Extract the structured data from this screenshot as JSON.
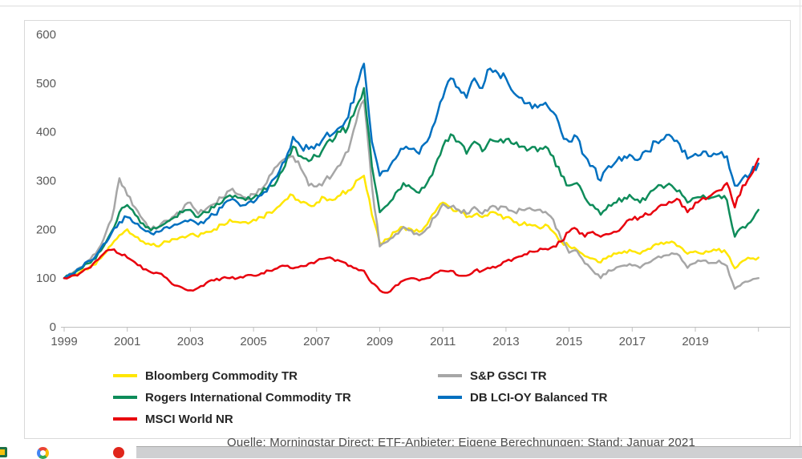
{
  "colors": {
    "axis_text": "#595959",
    "axis_line": "#bfbfbf",
    "border": "#d9d9d9",
    "yellow": "#FFE600",
    "gray": "#A6A6A6",
    "green": "#0E8C5A",
    "blue": "#0070C0",
    "red": "#E8000D"
  },
  "chart_data": {
    "type": "line",
    "title": "",
    "xlabel": "",
    "ylabel": "",
    "x_start": 1999,
    "x_step": 0.25,
    "x_axis": {
      "min": 1999,
      "max": 2022,
      "ticks": [
        1999,
        2001,
        2003,
        2005,
        2007,
        2009,
        2011,
        2013,
        2015,
        2017,
        2019,
        2021
      ],
      "labeled_ticks": [
        1999,
        2001,
        2003,
        2005,
        2007,
        2009,
        2011,
        2013,
        2015,
        2017,
        2019
      ]
    },
    "y_axis": {
      "min": 0,
      "max": 600,
      "ticks": [
        0,
        100,
        200,
        300,
        400,
        500,
        600
      ]
    },
    "grid": false,
    "legend_position": "bottom",
    "series": [
      {
        "name": "Bloomberg Commodity TR",
        "color": "#FFE600",
        "values": [
          100,
          105,
          112,
          118,
          128,
          148,
          168,
          188,
          200,
          185,
          175,
          168,
          165,
          175,
          180,
          185,
          190,
          185,
          195,
          200,
          210,
          220,
          215,
          215,
          220,
          225,
          235,
          245,
          260,
          270,
          255,
          250,
          255,
          265,
          260,
          270,
          280,
          300,
          310,
          230,
          172,
          180,
          195,
          205,
          200,
          195,
          210,
          235,
          255,
          245,
          240,
          225,
          230,
          225,
          235,
          230,
          225,
          215,
          210,
          210,
          205,
          210,
          195,
          175,
          165,
          158,
          145,
          140,
          132,
          145,
          150,
          155,
          155,
          150,
          160,
          170,
          170,
          175,
          165,
          150,
          155,
          150,
          155,
          160,
          150,
          120,
          135,
          140,
          142
        ]
      },
      {
        "name": "S&P GSCI TR",
        "color": "#A6A6A6",
        "values": [
          100,
          110,
          122,
          135,
          150,
          180,
          220,
          305,
          270,
          245,
          220,
          200,
          205,
          218,
          228,
          240,
          255,
          232,
          242,
          252,
          265,
          280,
          272,
          265,
          272,
          282,
          310,
          330,
          345,
          350,
          325,
          290,
          288,
          300,
          312,
          332,
          360,
          420,
          465,
          290,
          165,
          175,
          190,
          205,
          198,
          188,
          202,
          225,
          252,
          246,
          240,
          232,
          246,
          232,
          246,
          240,
          246,
          236,
          240,
          244,
          240,
          236,
          220,
          180,
          152,
          156,
          130,
          115,
          100,
          116,
          122,
          126,
          126,
          121,
          131,
          141,
          146,
          151,
          146,
          121,
          131,
          136,
          131,
          136,
          125,
          78,
          90,
          95,
          100
        ]
      },
      {
        "name": "Rogers International Commodity TR",
        "color": "#0E8C5A",
        "values": [
          100,
          108,
          118,
          130,
          140,
          165,
          195,
          235,
          250,
          230,
          212,
          198,
          205,
          215,
          225,
          235,
          240,
          225,
          235,
          245,
          255,
          270,
          265,
          260,
          265,
          275,
          290,
          300,
          330,
          370,
          350,
          340,
          350,
          370,
          380,
          400,
          410,
          450,
          490,
          330,
          235,
          250,
          275,
          295,
          285,
          275,
          295,
          330,
          370,
          395,
          380,
          355,
          380,
          360,
          385,
          380,
          385,
          375,
          370,
          365,
          360,
          370,
          350,
          310,
          290,
          295,
          265,
          250,
          230,
          250,
          255,
          265,
          265,
          255,
          270,
          285,
          285,
          290,
          280,
          255,
          265,
          270,
          265,
          270,
          260,
          185,
          205,
          215,
          240
        ]
      },
      {
        "name": "DB LCI-OY Balanced TR",
        "color": "#0070C0",
        "values": [
          100,
          108,
          120,
          135,
          145,
          170,
          192,
          215,
          225,
          212,
          200,
          192,
          195,
          205,
          210,
          215,
          220,
          210,
          220,
          230,
          245,
          260,
          255,
          250,
          255,
          270,
          290,
          310,
          340,
          390,
          370,
          365,
          375,
          390,
          395,
          410,
          430,
          490,
          540,
          380,
          310,
          320,
          345,
          365,
          365,
          355,
          380,
          420,
          470,
          510,
          490,
          470,
          510,
          490,
          530,
          520,
          510,
          480,
          470,
          460,
          450,
          460,
          440,
          400,
          380,
          390,
          350,
          330,
          300,
          330,
          340,
          350,
          350,
          345,
          360,
          380,
          385,
          390,
          375,
          345,
          355,
          360,
          350,
          355,
          350,
          290,
          305,
          315,
          335
        ]
      },
      {
        "name": "MSCI World NR",
        "color": "#E8000D",
        "values": [
          100,
          105,
          110,
          120,
          135,
          150,
          158,
          150,
          142,
          132,
          118,
          112,
          110,
          100,
          85,
          80,
          75,
          80,
          90,
          95,
          100,
          100,
          100,
          105,
          105,
          110,
          115,
          120,
          125,
          120,
          125,
          130,
          135,
          140,
          140,
          135,
          125,
          120,
          115,
          90,
          75,
          70,
          85,
          95,
          100,
          95,
          100,
          110,
          115,
          115,
          105,
          105,
          115,
          115,
          120,
          125,
          135,
          140,
          145,
          155,
          155,
          160,
          165,
          175,
          195,
          200,
          185,
          195,
          185,
          190,
          195,
          210,
          220,
          225,
          230,
          240,
          250,
          255,
          260,
          235,
          255,
          265,
          270,
          280,
          295,
          245,
          290,
          310,
          345
        ]
      }
    ]
  },
  "legend": {
    "items": [
      {
        "label": "Bloomberg Commodity TR",
        "color": "#FFE600"
      },
      {
        "label": "S&P GSCI TR",
        "color": "#A6A6A6"
      },
      {
        "label": "Rogers International Commodity TR",
        "color": "#0E8C5A"
      },
      {
        "label": "DB LCI-OY Balanced  TR",
        "color": "#0070C0"
      },
      {
        "label": "MSCI World NR",
        "color": "#E8000D"
      }
    ]
  },
  "source_note": "Quelle: Morningstar Direct; ETF-Anbieter; Eigene Berechnungen; Stand: Januar 2021",
  "taskbar": {
    "icons": [
      {
        "name": "excel-icon"
      },
      {
        "name": "google-icon"
      },
      {
        "name": "red-app-icon"
      }
    ]
  }
}
